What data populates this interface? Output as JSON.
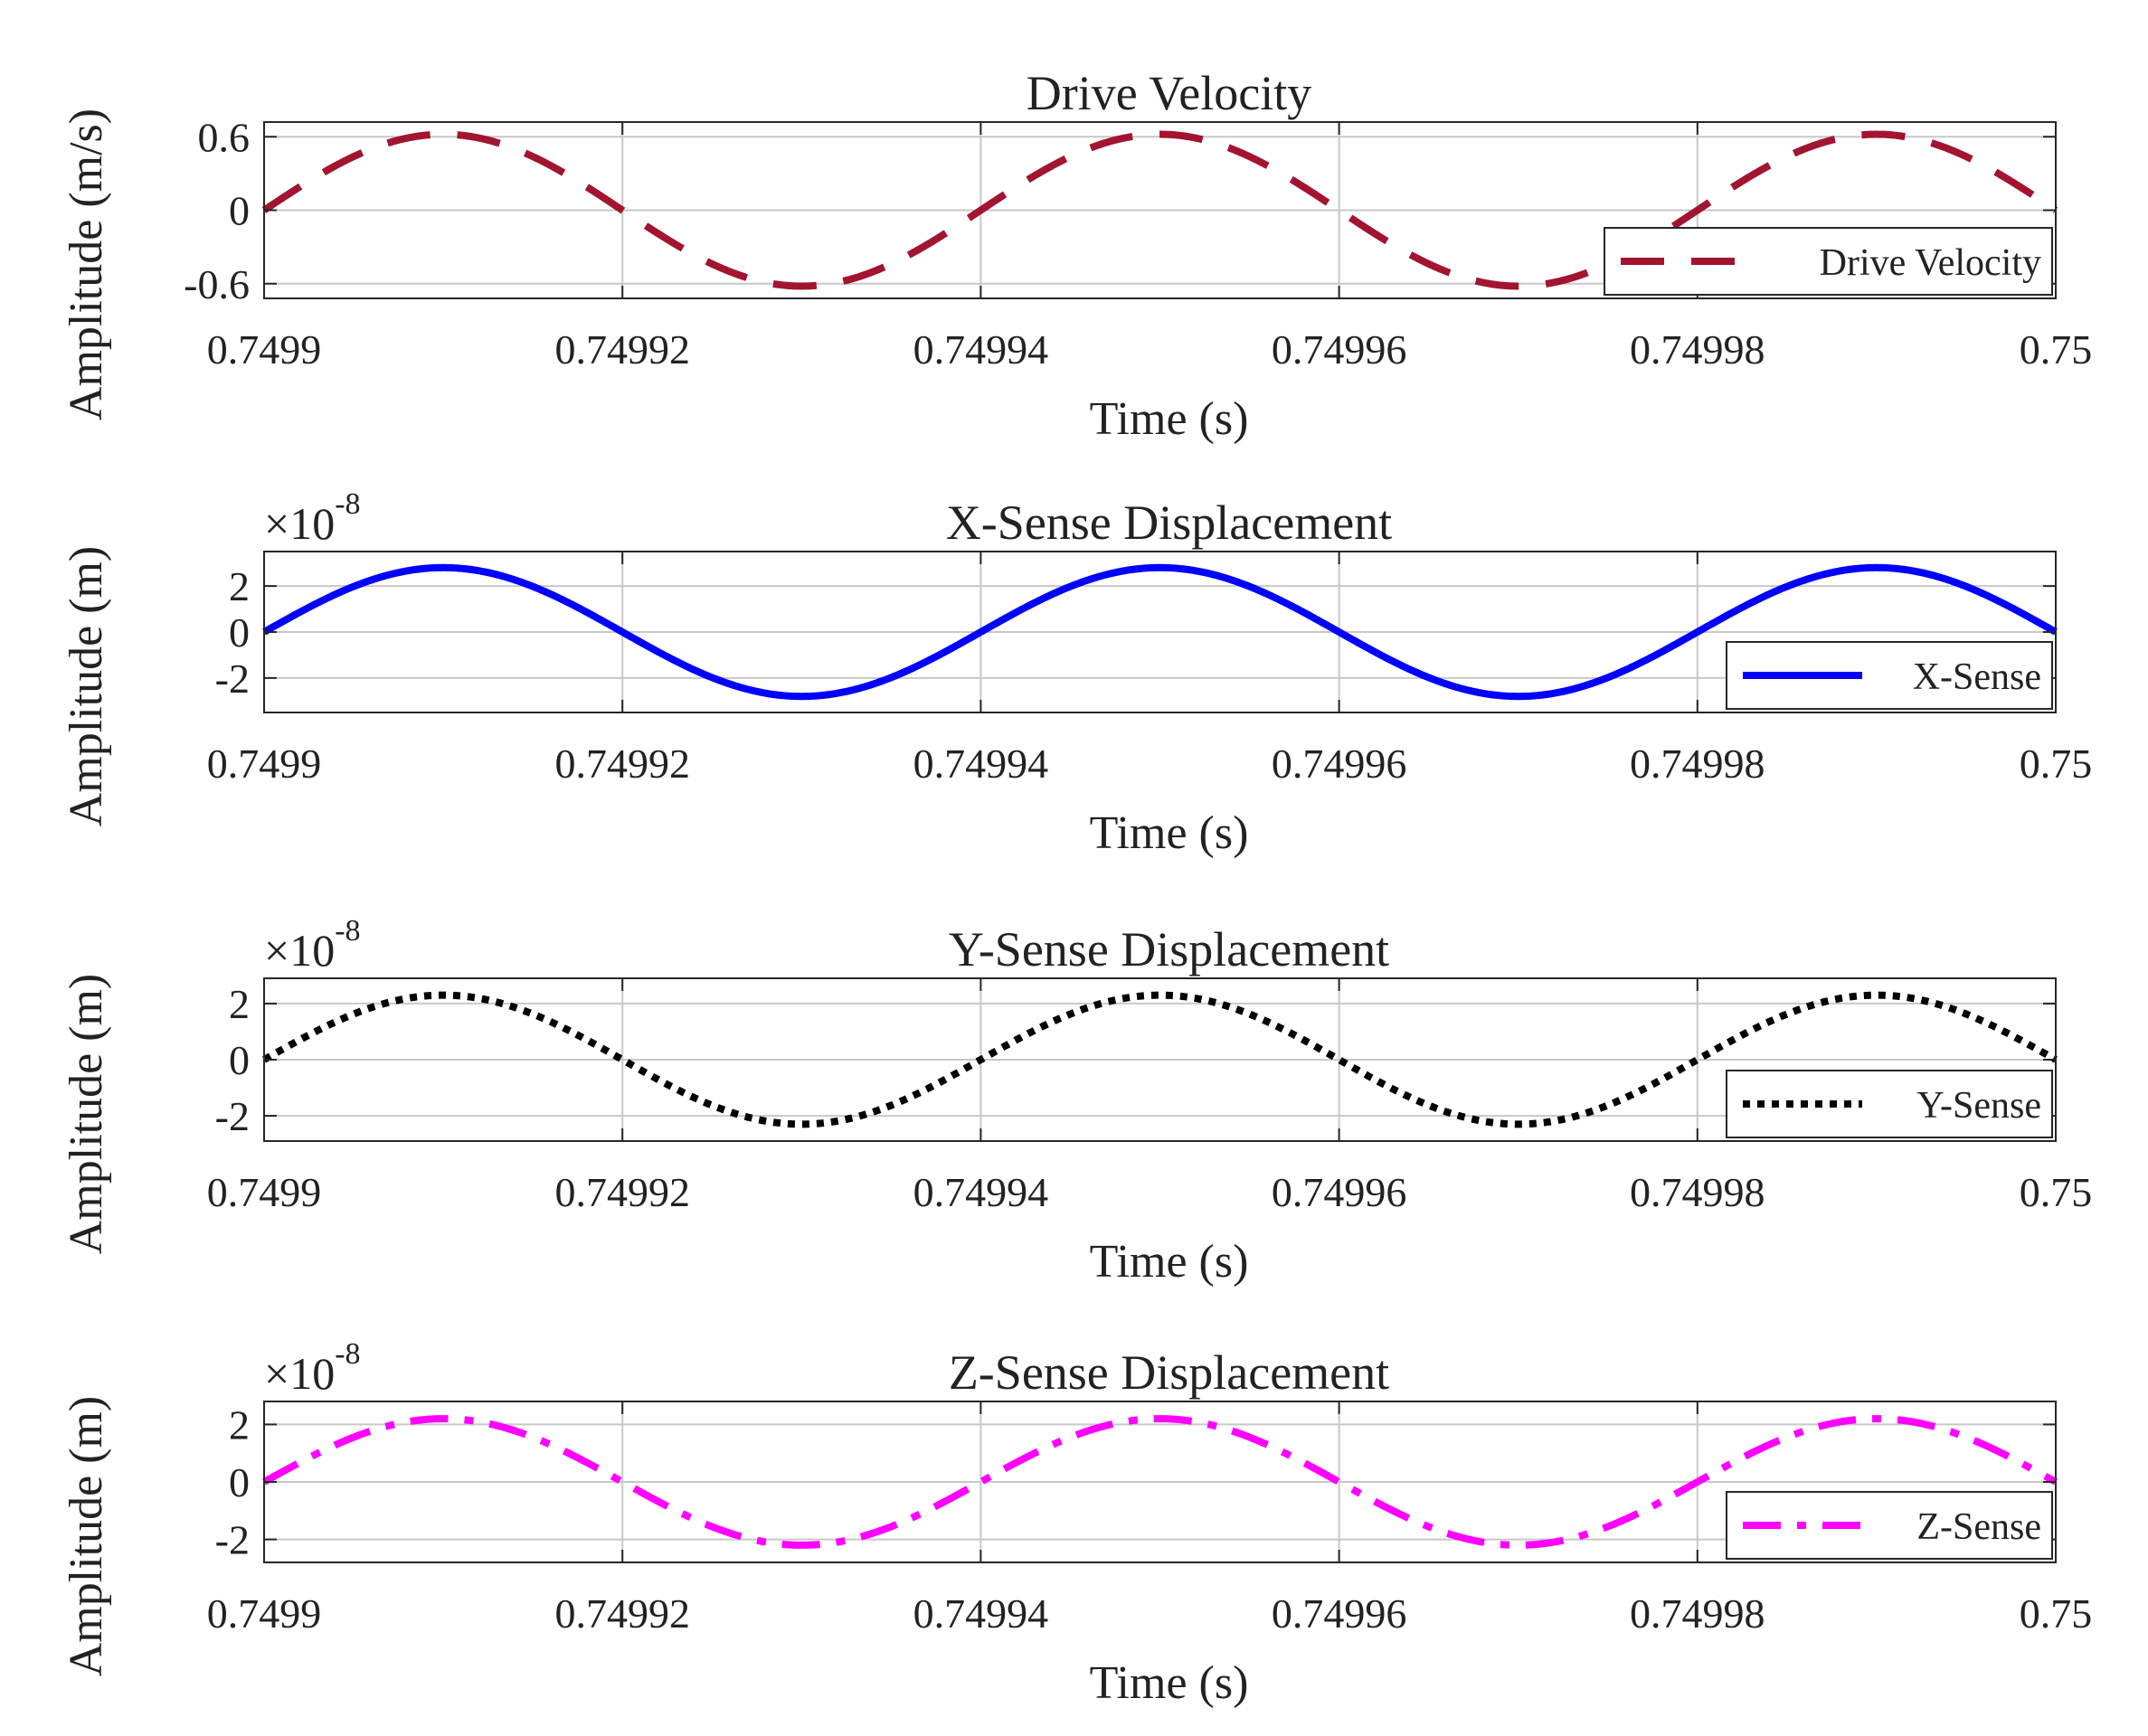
{
  "chart_data": [
    {
      "type": "line",
      "title": "Drive Velocity",
      "xlabel": "Time (s)",
      "ylabel": "Amplitude (m/s)",
      "xlim": [
        0.7499,
        0.75
      ],
      "ylim": [
        -0.72,
        0.72
      ],
      "xticks": [
        0.7499,
        0.74992,
        0.74994,
        0.74996,
        0.74998,
        0.75
      ],
      "xtick_labels": [
        "0.7499",
        "0.74992",
        "0.74994",
        "0.74996",
        "0.74998",
        "0.75"
      ],
      "yticks": [
        0.6,
        0,
        -0.6
      ],
      "ytick_labels": [
        "0.6",
        "0",
        "-0.6"
      ],
      "exponent_label": "",
      "grid": true,
      "legend": "bottom-right",
      "series": [
        {
          "name": "Drive Velocity",
          "color": "#A2142F",
          "style": "dashed",
          "amplitude": 0.62,
          "frequency_hz": 25000,
          "phase": "sine, zero at x = 0.7499"
        }
      ]
    },
    {
      "type": "line",
      "title": "X-Sense Displacement",
      "xlabel": "Time (s)",
      "ylabel": "Amplitude (m)",
      "xlim": [
        0.7499,
        0.75
      ],
      "ylim": [
        -3.5,
        3.5
      ],
      "xticks": [
        0.7499,
        0.74992,
        0.74994,
        0.74996,
        0.74998,
        0.75
      ],
      "xtick_labels": [
        "0.7499",
        "0.74992",
        "0.74994",
        "0.74996",
        "0.74998",
        "0.75"
      ],
      "yticks": [
        2,
        0,
        -2
      ],
      "ytick_labels": [
        "2",
        "0",
        "-2"
      ],
      "exponent_label": "×10",
      "exponent_power": "-8",
      "grid": true,
      "legend": "bottom-right",
      "series": [
        {
          "name": "X-Sense",
          "color": "#0000FF",
          "style": "solid",
          "amplitude": 2.8,
          "frequency_hz": 25000,
          "phase": "sine, zero at x = 0.7499"
        }
      ]
    },
    {
      "type": "line",
      "title": "Y-Sense Displacement",
      "xlabel": "Time (s)",
      "ylabel": "Amplitude (m)",
      "xlim": [
        0.7499,
        0.75
      ],
      "ylim": [
        -2.9,
        2.9
      ],
      "xticks": [
        0.7499,
        0.74992,
        0.74994,
        0.74996,
        0.74998,
        0.75
      ],
      "xtick_labels": [
        "0.7499",
        "0.74992",
        "0.74994",
        "0.74996",
        "0.74998",
        "0.75"
      ],
      "yticks": [
        2,
        0,
        -2
      ],
      "ytick_labels": [
        "2",
        "0",
        "-2"
      ],
      "exponent_label": "×10",
      "exponent_power": "-8",
      "grid": true,
      "legend": "bottom-right",
      "series": [
        {
          "name": "Y-Sense",
          "color": "#000000",
          "style": "dotted",
          "amplitude": 2.3,
          "frequency_hz": 25000,
          "phase": "sine, zero at x = 0.7499"
        }
      ]
    },
    {
      "type": "line",
      "title": "Z-Sense Displacement",
      "xlabel": "Time (s)",
      "ylabel": "Amplitude (m)",
      "xlim": [
        0.7499,
        0.75
      ],
      "ylim": [
        -2.8,
        2.8
      ],
      "xticks": [
        0.7499,
        0.74992,
        0.74994,
        0.74996,
        0.74998,
        0.75
      ],
      "xtick_labels": [
        "0.7499",
        "0.74992",
        "0.74994",
        "0.74996",
        "0.74998",
        "0.75"
      ],
      "yticks": [
        2,
        0,
        -2
      ],
      "ytick_labels": [
        "2",
        "0",
        "-2"
      ],
      "exponent_label": "×10",
      "exponent_power": "-8",
      "grid": true,
      "legend": "bottom-right",
      "series": [
        {
          "name": "Z-Sense",
          "color": "#FF00FF",
          "style": "dashdot",
          "amplitude": 2.2,
          "frequency_hz": 25000,
          "phase": "sine, zero at x = 0.7499"
        }
      ]
    }
  ]
}
